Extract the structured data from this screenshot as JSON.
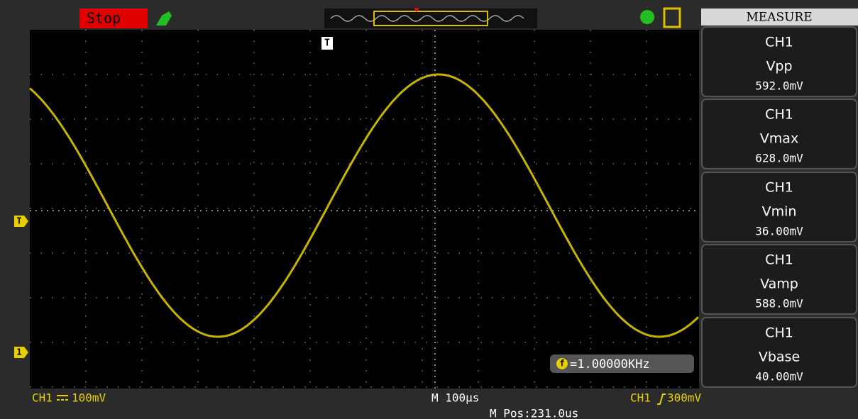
{
  "status": "Stop",
  "panel": {
    "title": "MEASURE",
    "items": [
      {
        "channel": "CH1",
        "name": "Vpp",
        "value": "592.0mV"
      },
      {
        "channel": "CH1",
        "name": "Vmax",
        "value": "628.0mV"
      },
      {
        "channel": "CH1",
        "name": "Vmin",
        "value": "36.00mV"
      },
      {
        "channel": "CH1",
        "name": "Vamp",
        "value": "588.0mV"
      },
      {
        "channel": "CH1",
        "name": "Vbase",
        "value": "40.00mV"
      }
    ]
  },
  "markers": {
    "trigger_time": "T",
    "trigger_level": "T",
    "channel": "1"
  },
  "frequency": {
    "icon": "f",
    "text": "=1.00000KHz"
  },
  "footer": {
    "ch_label": "CH1",
    "volts_div": "100mV",
    "time_div": "M 100μs",
    "position": "M Pos:231.0us",
    "trig_source": "CH1",
    "trig_level": "300mV"
  }
}
